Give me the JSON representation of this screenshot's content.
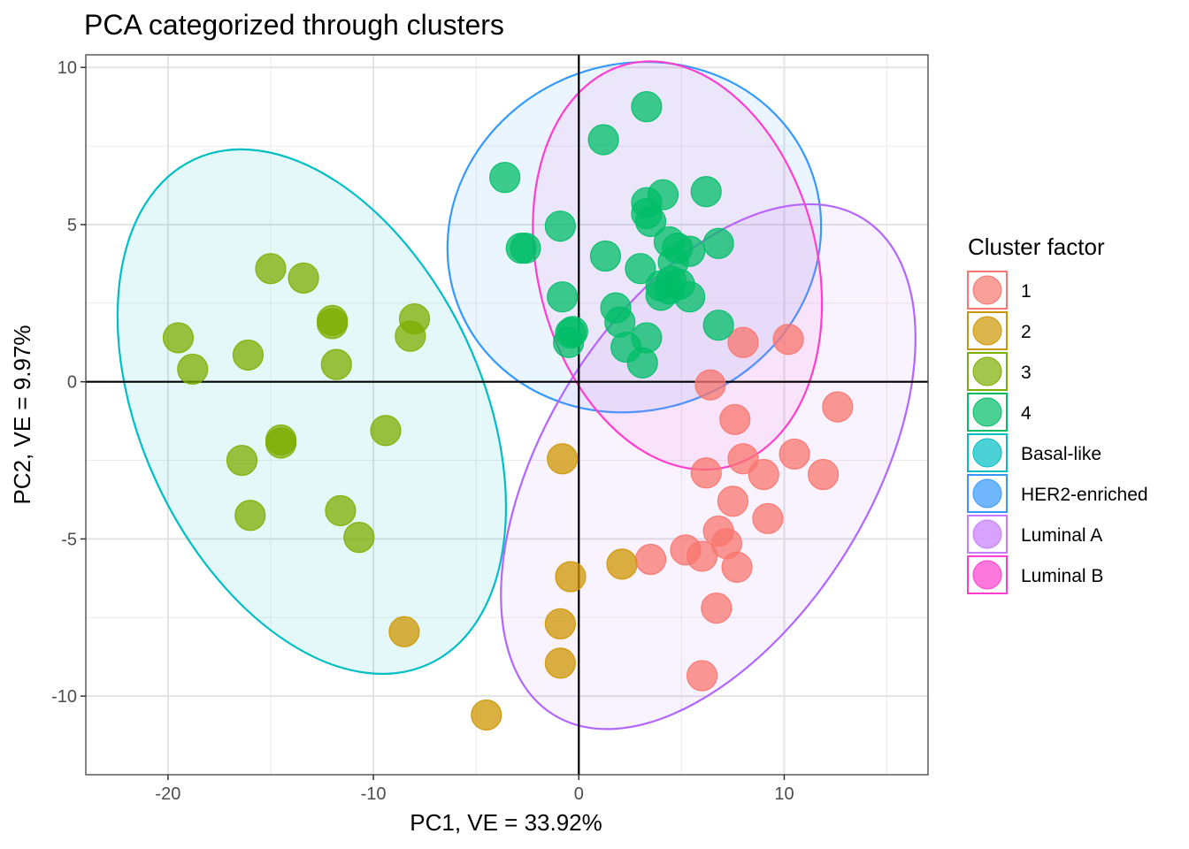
{
  "chart_data": {
    "type": "scatter",
    "title": "PCA categorized through clusters",
    "xlabel": "PC1, VE = 33.92%",
    "ylabel": "PC2, VE = 9.97%",
    "xlim": [
      -24,
      17
    ],
    "ylim": [
      -12.5,
      10.4
    ],
    "xticks": [
      -20,
      -10,
      0,
      10
    ],
    "xtick_labels": [
      "-20",
      "-10",
      "0",
      "10"
    ],
    "yticks": [
      -10,
      -5,
      0,
      5,
      10
    ],
    "ytick_labels": [
      "-10",
      "-5",
      "0",
      "5",
      "10"
    ],
    "grid": true,
    "reference_lines": {
      "x": 0,
      "y": 0
    },
    "legend": {
      "title": "Cluster factor",
      "position": "right",
      "entries": [
        "1",
        "2",
        "3",
        "4",
        "Basal-like",
        "HER2-enriched",
        "Luminal A",
        "Luminal B"
      ]
    },
    "series": [
      {
        "name": "1",
        "color": "#F8766D",
        "points": [
          [
            10.2,
            1.35
          ],
          [
            8,
            1.25
          ],
          [
            6.4,
            -0.1
          ],
          [
            12.6,
            -0.8
          ],
          [
            7.6,
            -1.2
          ],
          [
            10.5,
            -2.3
          ],
          [
            8,
            -2.45
          ],
          [
            6.2,
            -2.9
          ],
          [
            9,
            -2.95
          ],
          [
            11.9,
            -2.95
          ],
          [
            7.5,
            -3.8
          ],
          [
            9.2,
            -4.35
          ],
          [
            6.8,
            -4.75
          ],
          [
            7.2,
            -5.15
          ],
          [
            5.2,
            -5.35
          ],
          [
            6,
            -5.55
          ],
          [
            3.5,
            -5.65
          ],
          [
            7.7,
            -5.9
          ],
          [
            6.7,
            -7.2
          ],
          [
            6,
            -9.35
          ]
        ]
      },
      {
        "name": "2",
        "color": "#CD9600",
        "points": [
          [
            -0.8,
            -2.45
          ],
          [
            2.1,
            -5.8
          ],
          [
            -0.4,
            -6.2
          ],
          [
            -0.9,
            -7.7
          ],
          [
            -8.5,
            -7.95
          ],
          [
            -0.9,
            -8.95
          ],
          [
            -4.5,
            -10.6
          ]
        ]
      },
      {
        "name": "3",
        "color": "#7CAE00",
        "points": [
          [
            -15,
            3.6
          ],
          [
            -13.4,
            3.3
          ],
          [
            -12,
            1.95
          ],
          [
            -12,
            1.85
          ],
          [
            -8,
            2
          ],
          [
            -8.2,
            1.45
          ],
          [
            -19.5,
            1.4
          ],
          [
            -16.1,
            0.85
          ],
          [
            -18.8,
            0.4
          ],
          [
            -11.8,
            0.55
          ],
          [
            -9.4,
            -1.55
          ],
          [
            -14.5,
            -1.85
          ],
          [
            -14.5,
            -1.95
          ],
          [
            -16.4,
            -2.5
          ],
          [
            -16,
            -4.25
          ],
          [
            -11.6,
            -4.1
          ],
          [
            -10.7,
            -4.95
          ]
        ]
      },
      {
        "name": "4",
        "color": "#00BE67",
        "points": [
          [
            3.3,
            8.75
          ],
          [
            1.2,
            7.7
          ],
          [
            -3.6,
            6.5
          ],
          [
            4.1,
            5.95
          ],
          [
            6.2,
            6.05
          ],
          [
            3.3,
            5.7
          ],
          [
            3.3,
            5.35
          ],
          [
            3.5,
            5.1
          ],
          [
            -0.9,
            4.95
          ],
          [
            -2.8,
            4.25
          ],
          [
            -2.6,
            4.25
          ],
          [
            4.4,
            4.45
          ],
          [
            4.8,
            4.25
          ],
          [
            5.4,
            4.15
          ],
          [
            6.8,
            4.4
          ],
          [
            1.3,
            4
          ],
          [
            4.6,
            3.8
          ],
          [
            3,
            3.6
          ],
          [
            4.5,
            3.2
          ],
          [
            4.9,
            3.1
          ],
          [
            4,
            3.05
          ],
          [
            4.4,
            2.95
          ],
          [
            4,
            2.75
          ],
          [
            -0.8,
            2.7
          ],
          [
            5.4,
            2.7
          ],
          [
            1.8,
            2.35
          ],
          [
            2,
            1.9
          ],
          [
            -0.3,
            1.6
          ],
          [
            -0.4,
            1.55
          ],
          [
            6.8,
            1.8
          ],
          [
            3.3,
            1.4
          ],
          [
            -0.5,
            1.25
          ],
          [
            2.3,
            1.1
          ],
          [
            3.1,
            0.6
          ]
        ]
      }
    ],
    "ellipses": [
      {
        "name": "Basal-like",
        "color": "#00BFC4",
        "fill": "#00BFC4",
        "center": [
          -13,
          -0.95
        ],
        "semi_axes": [
          8.3,
          8.85
        ],
        "angle_deg": -25
      },
      {
        "name": "HER2-enriched",
        "color": "#3399FF",
        "fill": "#3399FF",
        "center": [
          2.7,
          4.6
        ],
        "semi_axes": [
          9.2,
          5.5
        ],
        "angle_deg": -22
      },
      {
        "name": "Luminal A",
        "color": "#B266FF",
        "fill": "#C77CFF",
        "center": [
          6.3,
          -2.7
        ],
        "semi_axes": [
          7.9,
          9.3
        ],
        "angle_deg": 32
      },
      {
        "name": "Luminal B",
        "color": "#FF3ECF",
        "fill": "#FF61CC",
        "center": [
          4.8,
          3.7
        ],
        "semi_axes": [
          6.8,
          6.6
        ],
        "angle_deg": -14
      }
    ],
    "legend_colors": [
      "#F8766D",
      "#CD9600",
      "#7CAE00",
      "#00BE67",
      "#00BFC4",
      "#3399FF",
      "#C77CFF",
      "#FF3ECF"
    ]
  }
}
